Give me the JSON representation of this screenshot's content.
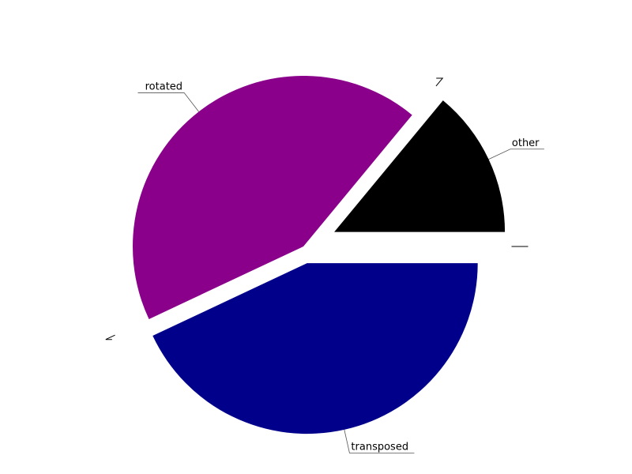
{
  "chart_data": {
    "type": "pie",
    "title": "",
    "slices": [
      {
        "label": "other",
        "value": 14,
        "color": "#000000",
        "explode": 0.4
      },
      {
        "label": "rotated",
        "value": 43,
        "color": "#8b008b",
        "explode": 0
      },
      {
        "label": "transposed",
        "value": 43,
        "color": "#00008b",
        "explode": 0.2
      }
    ],
    "start_angle_deg": 0,
    "direction": "counterclockwise",
    "legend": "none"
  }
}
